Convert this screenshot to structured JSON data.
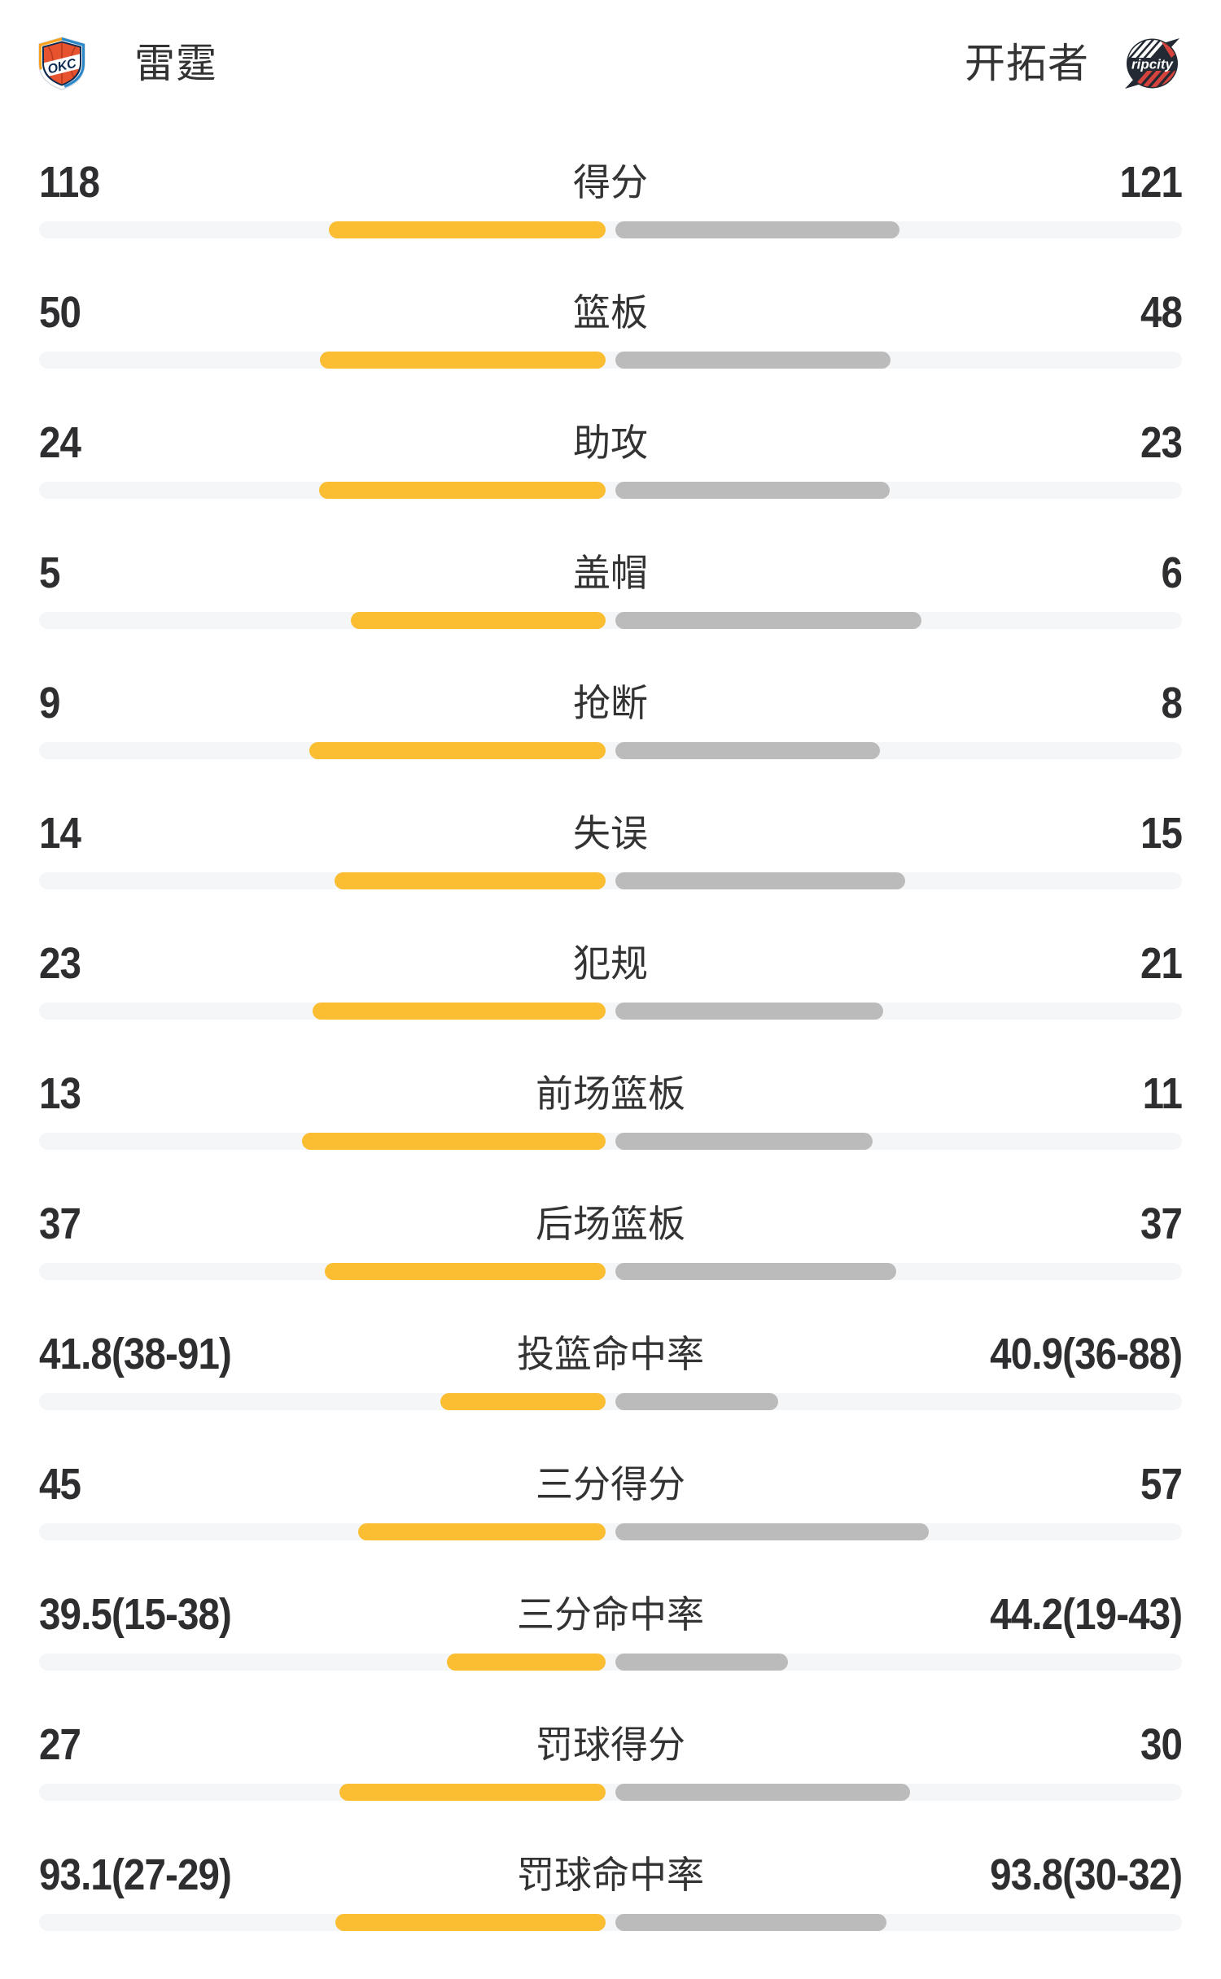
{
  "header": {
    "home_team": {
      "name": "雷霆",
      "logo_icon": "okc-thunder-shield"
    },
    "away_team": {
      "name": "开拓者",
      "logo_icon": "blazers-ripcity-badge"
    }
  },
  "colors": {
    "home_bar": "#FBBE32",
    "away_bar": "#BBBBBB",
    "track": "#F5F6F8",
    "number_text": "#2E2E30",
    "label_text": "#333333",
    "okc_navy": "#0D2B52",
    "okc_orange": "#E8532F",
    "okc_yellow": "#F9A11C",
    "okc_blue": "#2C87C8",
    "blazers_black": "#242A33",
    "blazers_red": "#D5433D"
  },
  "chart_data": {
    "type": "bar",
    "orientation": "horizontal-paired-from-center",
    "legend": [
      "雷霆",
      "开拓者"
    ],
    "legend_position": "top",
    "grid": false,
    "categories": [
      "得分",
      "篮板",
      "助攻",
      "盖帽",
      "抢断",
      "失误",
      "犯规",
      "前场篮板",
      "后场篮板",
      "投篮命中率",
      "三分得分",
      "三分命中率",
      "罚球得分",
      "罚球命中率"
    ],
    "series": [
      {
        "name": "雷霆",
        "color": "#FBBE32",
        "values": [
          118,
          50,
          24,
          5,
          9,
          14,
          23,
          13,
          37,
          41.8,
          45,
          39.5,
          27,
          93.1
        ],
        "labels": [
          "118",
          "50",
          "24",
          "5",
          "9",
          "14",
          "23",
          "13",
          "37",
          "41.8(38-91)",
          "45",
          "39.5(15-38)",
          "27",
          "93.1(27-29)"
        ],
        "bar_pct_of_half": [
          49.4,
          51.0,
          51.1,
          45.5,
          52.9,
          48.3,
          52.3,
          54.2,
          50.0,
          29.5,
          44.1,
          28.3,
          47.4,
          48.2
        ]
      },
      {
        "name": "开拓者",
        "color": "#BBBBBB",
        "values": [
          121,
          48,
          23,
          6,
          8,
          15,
          21,
          11,
          37,
          40.9,
          57,
          44.2,
          30,
          93.8
        ],
        "labels": [
          "121",
          "48",
          "23",
          "6",
          "8",
          "15",
          "21",
          "11",
          "37",
          "40.9(36-88)",
          "57",
          "44.2(19-43)",
          "30",
          "93.8(30-32)"
        ],
        "bar_pct_of_half": [
          50.6,
          49.0,
          48.9,
          54.5,
          47.1,
          51.7,
          47.7,
          45.8,
          50.0,
          29.0,
          55.9,
          30.7,
          52.6,
          48.4
        ]
      }
    ]
  }
}
